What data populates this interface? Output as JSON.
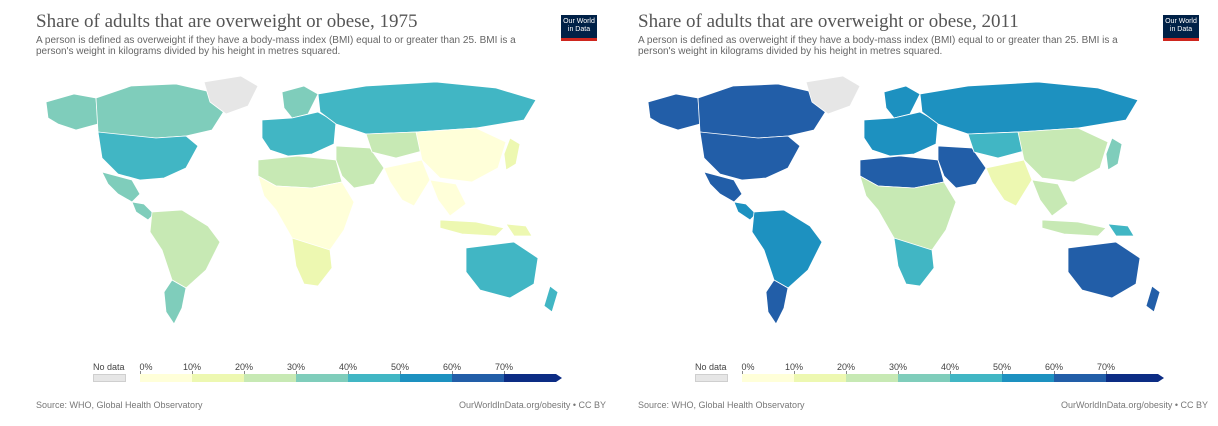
{
  "maps": [
    {
      "title": "Share of adults that are overweight or obese, 1975",
      "subtitle": "A person is defined as overweight if they have a body-mass index (BMI) equal to or greater than 25. BMI is a person's weight in kilograms divided by his height in metres squared.",
      "source": "Source: WHO, Global Health Observatory",
      "url": "OurWorldInData.org/obesity • CC BY",
      "regions": {
        "north_america": "#41b6c4",
        "canada": "#7fcdbb",
        "alaska": "#7fcdbb",
        "greenland": "#e6e6e6",
        "mexico": "#7fcdbb",
        "central_america": "#7fcdbb",
        "south_america": "#c7e9b4",
        "argentina": "#7fcdbb",
        "europe": "#41b6c4",
        "scandinavia": "#7fcdbb",
        "russia": "#41b6c4",
        "north_africa": "#c7e9b4",
        "africa": "#ffffd9",
        "southern_africa": "#edf8b1",
        "middle_east": "#c7e9b4",
        "central_asia": "#c7e9b4",
        "asia": "#ffffd9",
        "india": "#ffffd9",
        "southeast_asia": "#ffffd9",
        "japan": "#edf8b1",
        "indonesia": "#edf8b1",
        "australia": "#41b6c4",
        "new_zealand": "#41b6c4",
        "png": "#edf8b1"
      }
    },
    {
      "title": "Share of adults that are overweight or obese, 2011",
      "subtitle": "A person is defined as overweight if they have a body-mass index (BMI) equal to or greater than 25. BMI is a person's weight in kilograms divided by his height in metres squared.",
      "source": "Source: WHO, Global Health Observatory",
      "url": "OurWorldInData.org/obesity • CC BY",
      "regions": {
        "north_america": "#225ea8",
        "canada": "#225ea8",
        "alaska": "#225ea8",
        "greenland": "#e6e6e6",
        "mexico": "#225ea8",
        "central_america": "#1d91c0",
        "south_america": "#1d91c0",
        "argentina": "#225ea8",
        "europe": "#1d91c0",
        "scandinavia": "#1d91c0",
        "russia": "#1d91c0",
        "north_africa": "#225ea8",
        "africa": "#c7e9b4",
        "southern_africa": "#41b6c4",
        "middle_east": "#225ea8",
        "central_asia": "#41b6c4",
        "asia": "#c7e9b4",
        "india": "#edf8b1",
        "southeast_asia": "#c7e9b4",
        "japan": "#7fcdbb",
        "indonesia": "#c7e9b4",
        "australia": "#225ea8",
        "new_zealand": "#225ea8",
        "png": "#41b6c4"
      }
    }
  ],
  "logo": {
    "line1": "Our World",
    "line2": "in Data"
  },
  "legend": {
    "no_data_label": "No data",
    "no_data_color": "#e6e6e6",
    "ticks": [
      "0%",
      "10%",
      "20%",
      "30%",
      "40%",
      "50%",
      "60%",
      "70%"
    ],
    "colors": [
      "#ffffd9",
      "#edf8b1",
      "#c7e9b4",
      "#7fcdbb",
      "#41b6c4",
      "#1d91c0",
      "#225ea8",
      "#0c2c84"
    ]
  }
}
